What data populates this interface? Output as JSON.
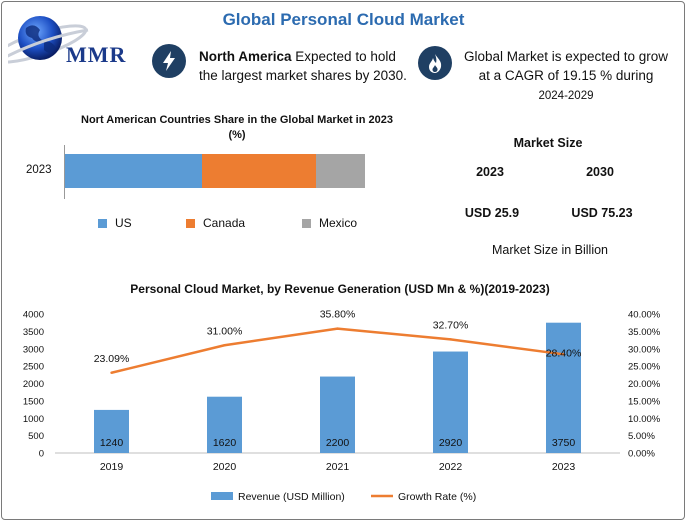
{
  "header": {
    "title": "Global Personal Cloud Market",
    "logo_text": "MMR"
  },
  "info": {
    "north_america_bold": "North America",
    "north_america_rest": " Expected to hold the largest market shares by 2030.",
    "cagr_text": "Global Market is expected to grow at a CAGR of 19.15 % during ",
    "cagr_period": "2024-2029",
    "icon_colors": {
      "badge": "#1f3f63"
    }
  },
  "share_chart": {
    "title": "Nort American Countries Share in the Global Market in 2023 (%)",
    "year_label": "2023",
    "segments": [
      {
        "name": "US",
        "value": 0.455,
        "color": "#5b9bd5"
      },
      {
        "name": "Canada",
        "value": 0.38,
        "color": "#ed7d31"
      },
      {
        "name": "Mexico",
        "value": 0.165,
        "color": "#a5a5a5"
      }
    ]
  },
  "market_size": {
    "heading": "Market Size",
    "years": [
      "2023",
      "2030"
    ],
    "values": [
      "USD 25.9",
      "USD 75.23"
    ],
    "note": "Market Size in Billion"
  },
  "chart_data": {
    "type": "bar",
    "title": "Personal Cloud Market, by Revenue Generation (USD Mn & %)(2019-2023)",
    "categories": [
      "2019",
      "2020",
      "2021",
      "2022",
      "2023"
    ],
    "series": [
      {
        "name": "Revenue (USD Million)",
        "type": "bar",
        "values": [
          1240,
          1620,
          2200,
          2920,
          3750
        ],
        "labels": [
          "1240",
          "1620",
          "2200",
          "2920",
          "3750"
        ],
        "color": "#5b9bd5"
      },
      {
        "name": "Growth Rate (%)",
        "type": "line",
        "values": [
          23.09,
          31.0,
          35.8,
          32.7,
          28.4
        ],
        "labels": [
          "23.09%",
          "31.00%",
          "35.80%",
          "32.70%",
          "28.40%"
        ],
        "color": "#ed7d31"
      }
    ],
    "y_left": {
      "ticks": [
        "0",
        "500",
        "1000",
        "1500",
        "2000",
        "2500",
        "3000",
        "3500",
        "4000"
      ],
      "ylim": [
        0,
        4000
      ]
    },
    "y_right": {
      "ticks": [
        "0.00%",
        "5.00%",
        "10.00%",
        "15.00%",
        "20.00%",
        "25.00%",
        "30.00%",
        "35.00%",
        "40.00%"
      ],
      "ylim": [
        0,
        40
      ]
    },
    "legend_position": "bottom",
    "grid": false
  }
}
